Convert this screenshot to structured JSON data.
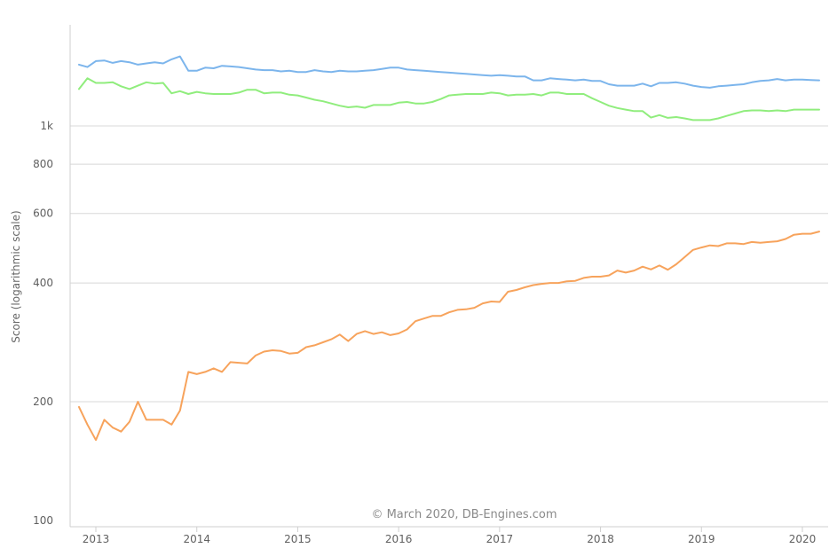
{
  "credit": "© March 2020, DB-Engines.com",
  "chart_data": {
    "type": "line",
    "title": "",
    "xlabel": "",
    "ylabel": "Score (logarithmic scale)",
    "yscale": "log",
    "ylim": [
      100,
      1600
    ],
    "y_ticks": [
      {
        "value": 100,
        "label": "100"
      },
      {
        "value": 200,
        "label": "200"
      },
      {
        "value": 400,
        "label": "400"
      },
      {
        "value": 600,
        "label": "600"
      },
      {
        "value": 800,
        "label": "800"
      },
      {
        "value": 1000,
        "label": "1k"
      }
    ],
    "x_ticks": [
      "2013",
      "2014",
      "2015",
      "2016",
      "2017",
      "2018",
      "2019",
      "2020"
    ],
    "xlim": [
      "2012-10",
      "2020-03"
    ],
    "grid": true,
    "legend": "none",
    "series": [
      {
        "color": "#7cb5ec",
        "x": [
          "2012-11",
          "2012-12",
          "2013-01",
          "2013-02",
          "2013-03",
          "2013-04",
          "2013-05",
          "2013-06",
          "2013-07",
          "2013-08",
          "2013-09",
          "2013-10",
          "2013-11",
          "2013-12",
          "2014-01",
          "2014-02",
          "2014-03",
          "2014-04",
          "2014-05",
          "2014-06",
          "2014-07",
          "2014-08",
          "2014-09",
          "2014-10",
          "2014-11",
          "2014-12",
          "2015-01",
          "2015-02",
          "2015-03",
          "2015-04",
          "2015-05",
          "2015-06",
          "2015-07",
          "2015-08",
          "2015-09",
          "2015-10",
          "2015-11",
          "2015-12",
          "2016-01",
          "2016-02",
          "2016-03",
          "2016-04",
          "2016-05",
          "2016-06",
          "2016-07",
          "2016-08",
          "2016-09",
          "2016-10",
          "2016-11",
          "2016-12",
          "2017-01",
          "2017-02",
          "2017-03",
          "2017-04",
          "2017-05",
          "2017-06",
          "2017-07",
          "2017-08",
          "2017-09",
          "2017-10",
          "2017-11",
          "2017-12",
          "2018-01",
          "2018-02",
          "2018-03",
          "2018-04",
          "2018-05",
          "2018-06",
          "2018-07",
          "2018-08",
          "2018-09",
          "2018-10",
          "2018-11",
          "2018-12",
          "2019-01",
          "2019-02",
          "2019-03",
          "2019-04",
          "2019-05",
          "2019-06",
          "2019-07",
          "2019-08",
          "2019-09",
          "2019-10",
          "2019-11",
          "2019-12",
          "2020-01",
          "2020-02",
          "2020-03"
        ],
        "values": [
          1430,
          1410,
          1460,
          1465,
          1445,
          1460,
          1450,
          1430,
          1440,
          1450,
          1440,
          1475,
          1500,
          1380,
          1380,
          1405,
          1400,
          1420,
          1415,
          1410,
          1400,
          1390,
          1385,
          1385,
          1375,
          1380,
          1370,
          1370,
          1385,
          1375,
          1370,
          1380,
          1375,
          1375,
          1380,
          1385,
          1395,
          1405,
          1405,
          1390,
          1385,
          1380,
          1375,
          1370,
          1365,
          1360,
          1355,
          1350,
          1345,
          1340,
          1345,
          1340,
          1335,
          1335,
          1305,
          1305,
          1320,
          1315,
          1310,
          1305,
          1310,
          1300,
          1300,
          1275,
          1265,
          1265,
          1265,
          1280,
          1260,
          1285,
          1285,
          1290,
          1280,
          1265,
          1255,
          1250,
          1260,
          1265,
          1270,
          1275,
          1290,
          1300,
          1305,
          1315,
          1305,
          1310,
          1310,
          1307,
          1305
        ]
      },
      {
        "color": "#90ed7d",
        "x": [
          "2012-11",
          "2012-12",
          "2013-01",
          "2013-02",
          "2013-03",
          "2013-04",
          "2013-05",
          "2013-06",
          "2013-07",
          "2013-08",
          "2013-09",
          "2013-10",
          "2013-11",
          "2013-12",
          "2014-01",
          "2014-02",
          "2014-03",
          "2014-04",
          "2014-05",
          "2014-06",
          "2014-07",
          "2014-08",
          "2014-09",
          "2014-10",
          "2014-11",
          "2014-12",
          "2015-01",
          "2015-02",
          "2015-03",
          "2015-04",
          "2015-05",
          "2015-06",
          "2015-07",
          "2015-08",
          "2015-09",
          "2015-10",
          "2015-11",
          "2015-12",
          "2016-01",
          "2016-02",
          "2016-03",
          "2016-04",
          "2016-05",
          "2016-06",
          "2016-07",
          "2016-08",
          "2016-09",
          "2016-10",
          "2016-11",
          "2016-12",
          "2017-01",
          "2017-02",
          "2017-03",
          "2017-04",
          "2017-05",
          "2017-06",
          "2017-07",
          "2017-08",
          "2017-09",
          "2017-10",
          "2017-11",
          "2017-12",
          "2018-01",
          "2018-02",
          "2018-03",
          "2018-04",
          "2018-05",
          "2018-06",
          "2018-07",
          "2018-08",
          "2018-09",
          "2018-10",
          "2018-11",
          "2018-12",
          "2019-01",
          "2019-02",
          "2019-03",
          "2019-04",
          "2019-05",
          "2019-06",
          "2019-07",
          "2019-08",
          "2019-09",
          "2019-10",
          "2019-11",
          "2019-12",
          "2020-01",
          "2020-02",
          "2020-03"
        ],
        "values": [
          1240,
          1320,
          1285,
          1285,
          1290,
          1260,
          1240,
          1265,
          1290,
          1280,
          1285,
          1210,
          1225,
          1205,
          1220,
          1210,
          1205,
          1205,
          1205,
          1215,
          1235,
          1235,
          1210,
          1215,
          1215,
          1200,
          1195,
          1180,
          1165,
          1155,
          1140,
          1125,
          1115,
          1120,
          1112,
          1130,
          1130,
          1130,
          1145,
          1150,
          1140,
          1140,
          1150,
          1170,
          1195,
          1200,
          1205,
          1205,
          1205,
          1215,
          1210,
          1195,
          1200,
          1200,
          1205,
          1195,
          1215,
          1215,
          1205,
          1205,
          1205,
          1175,
          1150,
          1125,
          1110,
          1100,
          1090,
          1090,
          1050,
          1065,
          1048,
          1053,
          1045,
          1035,
          1035,
          1035,
          1045,
          1060,
          1075,
          1090,
          1095,
          1095,
          1090,
          1095,
          1090,
          1100,
          1100,
          1100,
          1100
        ]
      },
      {
        "color": "#f7a35c",
        "x": [
          "2012-11",
          "2012-12",
          "2013-01",
          "2013-02",
          "2013-03",
          "2013-04",
          "2013-05",
          "2013-06",
          "2013-07",
          "2013-08",
          "2013-09",
          "2013-10",
          "2013-11",
          "2013-12",
          "2014-01",
          "2014-02",
          "2014-03",
          "2014-04",
          "2014-05",
          "2014-06",
          "2014-07",
          "2014-08",
          "2014-09",
          "2014-10",
          "2014-11",
          "2014-12",
          "2015-01",
          "2015-02",
          "2015-03",
          "2015-04",
          "2015-05",
          "2015-06",
          "2015-07",
          "2015-08",
          "2015-09",
          "2015-10",
          "2015-11",
          "2015-12",
          "2016-01",
          "2016-02",
          "2016-03",
          "2016-04",
          "2016-05",
          "2016-06",
          "2016-07",
          "2016-08",
          "2016-09",
          "2016-10",
          "2016-11",
          "2016-12",
          "2017-01",
          "2017-02",
          "2017-03",
          "2017-04",
          "2017-05",
          "2017-06",
          "2017-07",
          "2017-08",
          "2017-09",
          "2017-10",
          "2017-11",
          "2017-12",
          "2018-01",
          "2018-02",
          "2018-03",
          "2018-04",
          "2018-05",
          "2018-06",
          "2018-07",
          "2018-08",
          "2018-09",
          "2018-10",
          "2018-11",
          "2018-12",
          "2019-01",
          "2019-02",
          "2019-03",
          "2019-04",
          "2019-05",
          "2019-06",
          "2019-07",
          "2019-08",
          "2019-09",
          "2019-10",
          "2019-11",
          "2019-12",
          "2020-01",
          "2020-02",
          "2020-03"
        ],
        "values": [
          194,
          175,
          160,
          180,
          172,
          168,
          178,
          200,
          180,
          180,
          180,
          175,
          190,
          238,
          235,
          238,
          243,
          238,
          252,
          251,
          250,
          262,
          268,
          270,
          269,
          265,
          266,
          275,
          278,
          283,
          288,
          296,
          285,
          297,
          302,
          297,
          300,
          295,
          298,
          305,
          320,
          325,
          330,
          330,
          337,
          342,
          343,
          346,
          355,
          359,
          358,
          380,
          384,
          390,
          395,
          398,
          400,
          400,
          404,
          405,
          412,
          415,
          415,
          418,
          430,
          425,
          430,
          440,
          433,
          443,
          432,
          446,
          465,
          485,
          492,
          498,
          496,
          504,
          504,
          502,
          508,
          506,
          508,
          510,
          517,
          530,
          533,
          533,
          540
        ]
      }
    ]
  }
}
